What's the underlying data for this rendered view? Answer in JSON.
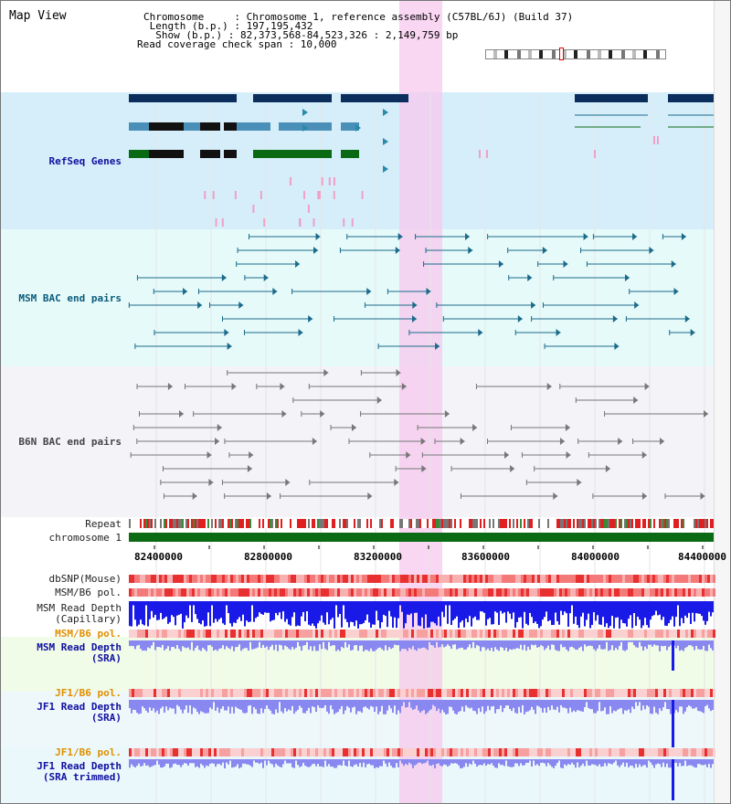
{
  "title": "Map View",
  "header": {
    "chromosome_line": "Chromosome     : Chromosome 1, reference assembly (C57BL/6J) (Build 37)",
    "length_line": " Length (b.p.) : 197,195,432",
    "show_line": "  Show (b.p.) : 82,373,568-84,523,326 : 2,149,759 bp",
    "coverage_line": "Read coverage check span : 10,000"
  },
  "tracks": {
    "refseq": "RefSeq Genes",
    "msm_bac": "MSM BAC end pairs",
    "b6n_bac": "B6N BAC end pairs",
    "repeat": "Repeat",
    "chromosome": "chromosome 1",
    "dbsnp": "dbSNP(Mouse)",
    "msm_b6_pol_1": "MSM/B6 pol.",
    "msm_read_depth_cap": "MSM Read Depth\n(Capillary)",
    "msm_b6_pol_2": "MSM/B6 pol.",
    "msm_read_depth_sra": "MSM Read Depth\n(SRA)",
    "jf1_b6_pol_1": "JF1/B6 pol.",
    "jf1_read_depth_sra": "JF1 Read Depth\n(SRA)",
    "jf1_b6_pol_2": "JF1/B6 pol.",
    "jf1_read_depth_trim": "JF1 Read Depth\n(SRA trimmed)"
  },
  "axis": {
    "ticks": [
      "82400000",
      "82800000",
      "83200000",
      "83600000",
      "84000000",
      "84400000"
    ]
  },
  "colors": {
    "refseq_bg": "#d6eefa",
    "msm_bg": "#e8fafa",
    "b6n_bg": "#f2f2f7",
    "highlight": "#f7c8ee",
    "gene_dark": "#0b2e5c",
    "gene_mid": "#4a8fb8",
    "gene_green": "#0a6a14",
    "msm_pair": "#1a6a8a",
    "b6n_pair": "#777777",
    "depth_blue": "#1a1ae8",
    "depth_light": "#8888f0",
    "pol_red": "#ee3333"
  }
}
